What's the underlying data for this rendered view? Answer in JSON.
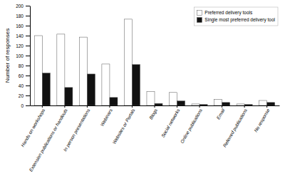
{
  "chart_data": {
    "type": "bar",
    "y_label": "Number of responses",
    "categories": [
      "Hands on workshops",
      "Extension publications or handouts",
      "In person presentations",
      "Webinars",
      "Websites or Portals",
      "Blogs",
      "Social networks",
      "Online publications",
      "Email",
      "Referred publications",
      "No response"
    ],
    "series": [
      {
        "name": "Preferred delivery tools",
        "color": "#ffffff",
        "values": [
          140,
          143,
          137,
          83,
          173,
          28,
          26,
          3,
          12,
          3,
          10
        ]
      },
      {
        "name": "Single most preferred delivery tool",
        "color": "#111111",
        "values": [
          65,
          36,
          63,
          16,
          82,
          4,
          9,
          2,
          6,
          2,
          6
        ]
      }
    ],
    "ylim": [
      0,
      200
    ],
    "yticks": [
      0,
      20,
      40,
      60,
      80,
      100,
      120,
      140,
      160,
      180,
      200
    ],
    "legend": "upper right",
    "grid": false
  }
}
